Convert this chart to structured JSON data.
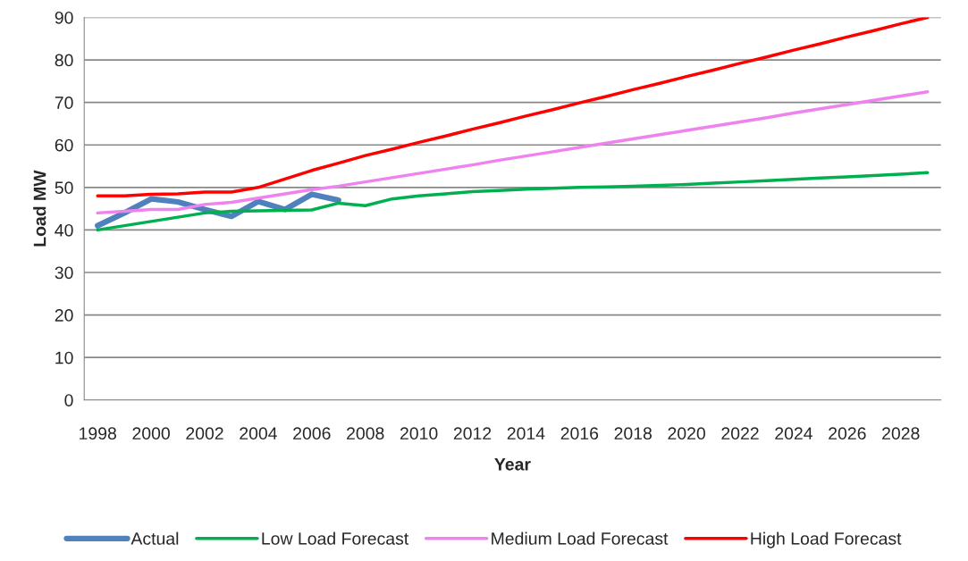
{
  "chart_data": {
    "type": "line",
    "xlabel": "Year",
    "ylabel": "Load MW",
    "categories": [
      "1998",
      null,
      "2000",
      null,
      "2002",
      null,
      "2004",
      null,
      "2006",
      null,
      "2008",
      null,
      "2010",
      null,
      "2012",
      null,
      "2014",
      null,
      "2016",
      null,
      "2018",
      null,
      "2020",
      null,
      "2022",
      null,
      "2024",
      null,
      "2026",
      null,
      "2028",
      null
    ],
    "series": [
      {
        "name": "Actual",
        "color": "#4f81bd",
        "values": [
          41,
          44,
          47.3,
          46.6,
          44.8,
          43.2,
          46.7,
          44.8,
          48.4,
          47,
          null,
          null,
          null,
          null,
          null,
          null,
          null,
          null,
          null,
          null,
          null,
          null,
          null,
          null,
          null,
          null,
          null,
          null,
          null,
          null,
          null,
          null
        ]
      },
      {
        "name": "Low Load Forecast",
        "color": "#00b050",
        "values": [
          40,
          41,
          42,
          43,
          44,
          44.4,
          44.5,
          44.6,
          44.7,
          46.3,
          45.7,
          47.3,
          48,
          48.5,
          49,
          49.3,
          49.6,
          49.8,
          50,
          50.1,
          50.3,
          50.5,
          50.7,
          51,
          51.3,
          51.6,
          51.9,
          52.2,
          52.5,
          52.8,
          53.1,
          53.5
        ]
      },
      {
        "name": "Medium Load Forecast",
        "color": "#ee82ee",
        "values": [
          44,
          44.4,
          44.8,
          44.8,
          46,
          46.5,
          47.5,
          48.5,
          49.5,
          50.3,
          51.3,
          52.3,
          53.3,
          54.3,
          55.3,
          56.4,
          57.4,
          58.4,
          59.4,
          60.4,
          61.4,
          62.4,
          63.4,
          64.4,
          65.4,
          66.4,
          67.5,
          68.5,
          69.5,
          70.5,
          71.5,
          72.5
        ]
      },
      {
        "name": "High Load Forecast",
        "color": "#ff0000",
        "values": [
          48,
          48,
          48.4,
          48.5,
          48.9,
          48.9,
          50,
          52,
          54,
          55.7,
          57.5,
          59,
          60.6,
          62.1,
          63.7,
          65.2,
          66.8,
          68.3,
          69.9,
          71.4,
          73,
          74.5,
          76.1,
          77.6,
          79.2,
          80.7,
          82.3,
          83.8,
          85.4,
          86.9,
          88.5,
          90
        ]
      }
    ],
    "ylim": [
      0,
      90
    ],
    "yticks": [
      0,
      10,
      20,
      30,
      40,
      50,
      60,
      70,
      80,
      90
    ],
    "grid": "y",
    "legend": "bottom",
    "marker": "none",
    "line_style": "solid"
  }
}
